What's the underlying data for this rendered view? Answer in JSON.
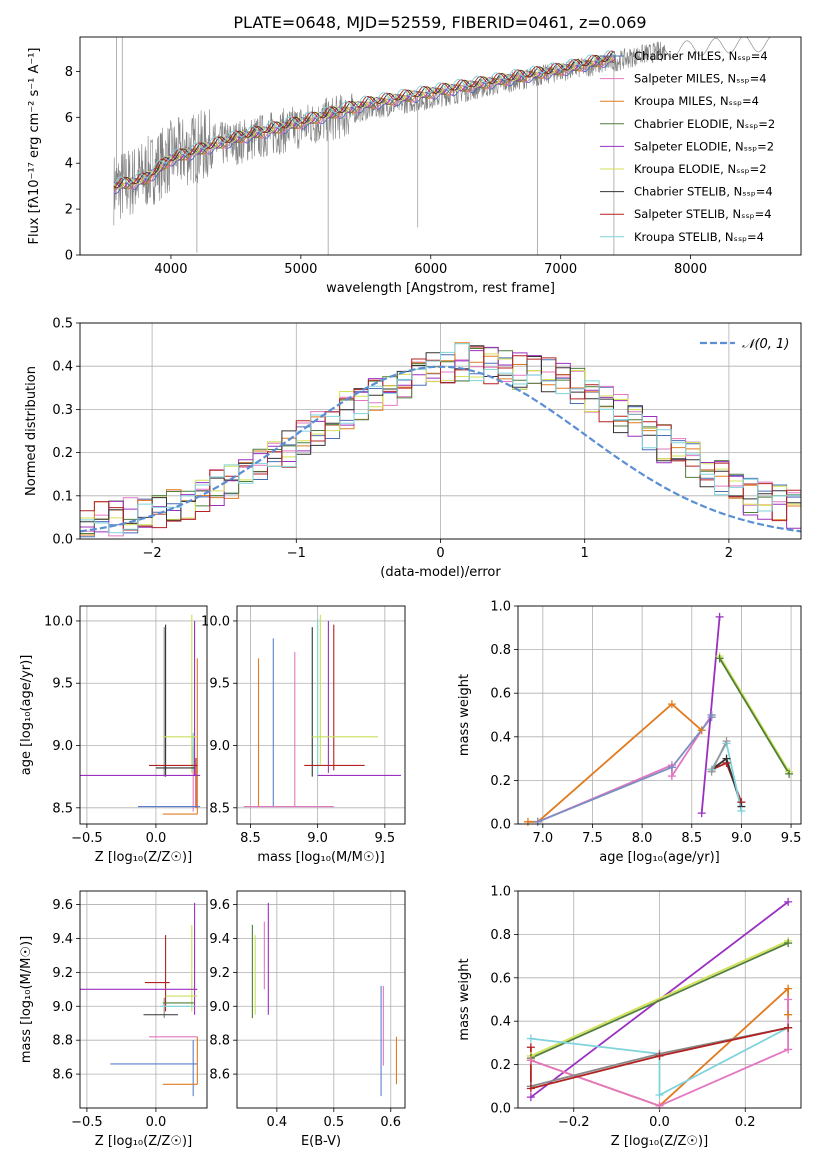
{
  "figure_title": "PLATE=0648, MJD=52559, FIBERID=0461, z=0.069",
  "chart_data": [
    {
      "id": "spectrum",
      "type": "line",
      "xlabel": "wavelength [Angstrom, rest frame]",
      "ylabel": "Flux [fλ10⁻¹⁷ erg cm⁻² s⁻¹ A⁻¹]",
      "xlim": [
        3300,
        8850
      ],
      "ylim": [
        0,
        9.5
      ],
      "xticks": [
        4000,
        5000,
        6000,
        7000,
        8000
      ],
      "yticks": [
        0,
        2,
        4,
        6,
        8
      ],
      "grid": false,
      "legend_position": "top-right",
      "observed": {
        "color": "#808080",
        "x": [
          3560,
          3700,
          3800,
          4000,
          4200,
          4500,
          5000,
          5500,
          6000,
          6500,
          7000,
          7400,
          7600,
          7800,
          8000,
          8200,
          8400,
          8600
        ],
        "y": [
          2.9,
          3.2,
          3.5,
          4.3,
          4.7,
          4.9,
          5.6,
          6.3,
          6.8,
          7.4,
          8.0,
          8.4,
          8.7,
          8.9,
          9.0,
          9.1,
          9.2,
          9.2
        ]
      },
      "series": [
        {
          "name": "Chabrier MILES, N_SSP=4",
          "color": "#4a6fb5"
        },
        {
          "name": "Salpeter MILES, N_SSP=4",
          "color": "#e377c2"
        },
        {
          "name": "Kroupa MILES, N_SSP=4",
          "color": "#e07b20"
        },
        {
          "name": "Chabrier ELODIE, N_SSP=2",
          "color": "#4f7f3a"
        },
        {
          "name": "Salpeter ELODIE, N_SSP=2",
          "color": "#9b30c0"
        },
        {
          "name": "Kroupa ELODIE, N_SSP=2",
          "color": "#d4e157"
        },
        {
          "name": "Chabrier STELIB, N_SSP=4",
          "color": "#333333"
        },
        {
          "name": "Salpeter STELIB, N_SSP=4",
          "color": "#b22222"
        },
        {
          "name": "Kroupa STELIB, N_SSP=4",
          "color": "#7fd3dc"
        }
      ],
      "model_shape": {
        "x": [
          3560,
          3800,
          4000,
          4500,
          5000,
          5500,
          6000,
          6500,
          7000,
          7400
        ],
        "y": [
          3.0,
          3.3,
          4.2,
          5.1,
          5.8,
          6.6,
          7.1,
          7.6,
          8.1,
          8.6
        ]
      }
    },
    {
      "id": "residuals",
      "type": "step",
      "xlabel": "(data-model)/error",
      "ylabel": "Normed distribution",
      "xlim": [
        -2.5,
        2.5
      ],
      "ylim": [
        0,
        0.5
      ],
      "xticks": [
        -2,
        -1,
        0,
        1,
        2
      ],
      "yticks": [
        0.0,
        0.1,
        0.2,
        0.3,
        0.4,
        0.5
      ],
      "grid": true,
      "legend_position": "top-right",
      "gaussian_label": "𝒩(0, 1)",
      "gaussian_color": "#5b8fd4",
      "bin_width": 0.1,
      "base": [
        0.04,
        0.045,
        0.05,
        0.055,
        0.06,
        0.07,
        0.08,
        0.09,
        0.1,
        0.12,
        0.13,
        0.15,
        0.17,
        0.19,
        0.21,
        0.23,
        0.25,
        0.27,
        0.3,
        0.32,
        0.34,
        0.35,
        0.37,
        0.38,
        0.4,
        0.4,
        0.41,
        0.41,
        0.4,
        0.4,
        0.39,
        0.39,
        0.38,
        0.37,
        0.35,
        0.33,
        0.31,
        0.29,
        0.27,
        0.25,
        0.22,
        0.2,
        0.18,
        0.16,
        0.14,
        0.12,
        0.1,
        0.09,
        0.08,
        0.07,
        0.06
      ]
    },
    {
      "id": "Z_age",
      "type": "errorbar",
      "xlabel": "Z [log₁₀(Z/Z☉)]",
      "ylabel": "age  [log₁₀(age/yr)]",
      "xlim": [
        -0.55,
        0.37
      ],
      "ylim": [
        8.37,
        10.12
      ],
      "xticks": [
        -0.5,
        0.0
      ],
      "yticks": [
        8.5,
        9.0,
        9.5,
        10.0
      ],
      "grid": true
    },
    {
      "id": "mass_age",
      "type": "errorbar",
      "xlabel": "mass [log₁₀(M/M☉)]",
      "ylabel": "",
      "xlim": [
        8.4,
        9.65
      ],
      "ylim": [
        8.37,
        10.12
      ],
      "xticks": [
        8.5,
        9.0,
        9.5
      ],
      "yticks": [
        8.5,
        9.0,
        9.5,
        10.0
      ],
      "grid": true
    },
    {
      "id": "age_weight",
      "type": "line",
      "xlabel": "age  [log₁₀(age/yr)]",
      "ylabel": "mass weight",
      "xlim": [
        6.75,
        9.6
      ],
      "ylim": [
        0,
        1
      ],
      "xticks": [
        7.0,
        7.5,
        8.0,
        8.5,
        9.0,
        9.5
      ],
      "yticks": [
        0.0,
        0.2,
        0.4,
        0.6,
        0.8,
        1.0
      ],
      "grid": true,
      "series": [
        {
          "name": "Kroupa MILES",
          "color": "#e07b20",
          "x": [
            6.85,
            6.95,
            8.3,
            8.6
          ],
          "y": [
            0.01,
            0.01,
            0.55,
            0.43
          ]
        },
        {
          "name": "Salpeter MILES",
          "color": "#e377c2",
          "x": [
            6.95,
            8.3,
            8.3,
            8.7
          ],
          "y": [
            0.01,
            0.27,
            0.22,
            0.5
          ]
        },
        {
          "name": "Chabrier MILES",
          "color": "#7b8fc0",
          "x": [
            6.95,
            8.3,
            8.7,
            8.7
          ],
          "y": [
            0.01,
            0.26,
            0.49,
            0.5
          ]
        },
        {
          "name": "Salpeter ELODIE",
          "color": "#9b30c0",
          "x": [
            8.6,
            8.78
          ],
          "y": [
            0.05,
            0.95
          ]
        },
        {
          "name": "Kroupa ELODIE",
          "color": "#d4e157",
          "x": [
            8.78,
            9.48
          ],
          "y": [
            0.77,
            0.24
          ]
        },
        {
          "name": "Chabrier ELODIE",
          "color": "#4f7f3a",
          "x": [
            8.78,
            9.48
          ],
          "y": [
            0.76,
            0.23
          ]
        },
        {
          "name": "Salpeter STELIB",
          "color": "#b22222",
          "x": [
            8.7,
            8.85,
            9.0
          ],
          "y": [
            0.25,
            0.28,
            0.1
          ]
        },
        {
          "name": "Chabrier STELIB",
          "color": "#333333",
          "x": [
            8.7,
            8.85,
            9.0
          ],
          "y": [
            0.25,
            0.3,
            0.08
          ]
        },
        {
          "name": "Kroupa STELIB",
          "color": "#7fd3dc",
          "x": [
            8.7,
            8.85,
            9.0
          ],
          "y": [
            0.25,
            0.37,
            0.06
          ]
        },
        {
          "name": "Chabrier STELIB b",
          "color": "#999999",
          "x": [
            8.7,
            8.85
          ],
          "y": [
            0.24,
            0.38
          ]
        }
      ]
    },
    {
      "id": "Z_mass",
      "type": "errorbar",
      "xlabel": "Z [log₁₀(Z/Z☉)]",
      "ylabel": "mass [log₁₀(M/M☉)]",
      "xlim": [
        -0.55,
        0.37
      ],
      "ylim": [
        8.4,
        9.68
      ],
      "xticks": [
        -0.5,
        0.0
      ],
      "yticks": [
        8.6,
        8.8,
        9.0,
        9.2,
        9.4,
        9.6
      ],
      "grid": true
    },
    {
      "id": "ebv_mass",
      "type": "errorbar",
      "xlabel": "E(B-V)",
      "ylabel": "",
      "xlim": [
        0.33,
        0.625
      ],
      "ylim": [
        8.4,
        9.68
      ],
      "xticks": [
        0.4,
        0.5,
        0.6
      ],
      "yticks": [
        8.6,
        8.8,
        9.0,
        9.2,
        9.4,
        9.6
      ],
      "grid": true
    },
    {
      "id": "Z_weight",
      "type": "line",
      "xlabel": "Z [log₁₀(Z/Z☉)]",
      "ylabel": "mass weight",
      "xlim": [
        -0.33,
        0.33
      ],
      "ylim": [
        0,
        1
      ],
      "xticks": [
        -0.2,
        0.0,
        0.2
      ],
      "yticks": [
        0.0,
        0.2,
        0.4,
        0.6,
        0.8,
        1.0
      ],
      "grid": true,
      "series": [
        {
          "name": "Salpeter ELODIE",
          "color": "#9b30c0",
          "x": [
            -0.3,
            0.3
          ],
          "y": [
            0.05,
            0.95
          ]
        },
        {
          "name": "Kroupa ELODIE",
          "color": "#d4e157",
          "x": [
            -0.3,
            0.3
          ],
          "y": [
            0.24,
            0.77
          ]
        },
        {
          "name": "Chabrier ELODIE",
          "color": "#4f7f3a",
          "x": [
            -0.3,
            0.3
          ],
          "y": [
            0.23,
            0.76
          ]
        },
        {
          "name": "Kroupa MILES",
          "color": "#e07b20",
          "x": [
            -0.3,
            0.0,
            0.3,
            0.3
          ],
          "y": [
            0.22,
            0.01,
            0.55,
            0.43
          ]
        },
        {
          "name": "Salpeter MILES",
          "color": "#e377c2",
          "x": [
            -0.3,
            0.0,
            0.3,
            0.3
          ],
          "y": [
            0.22,
            0.01,
            0.27,
            0.5
          ]
        },
        {
          "name": "Kroupa STELIB",
          "color": "#7fd3dc",
          "x": [
            -0.3,
            0.0,
            0.0,
            0.3
          ],
          "y": [
            0.32,
            0.25,
            0.06,
            0.37
          ]
        },
        {
          "name": "Chabrier STELIB",
          "color": "#888888",
          "x": [
            -0.3,
            0.0,
            0.3
          ],
          "y": [
            0.1,
            0.25,
            0.37
          ]
        },
        {
          "name": "Salpeter STELIB",
          "color": "#b22222",
          "x": [
            -0.3,
            -0.3,
            0.0,
            0.3
          ],
          "y": [
            0.28,
            0.09,
            0.24,
            0.37
          ]
        }
      ]
    }
  ]
}
